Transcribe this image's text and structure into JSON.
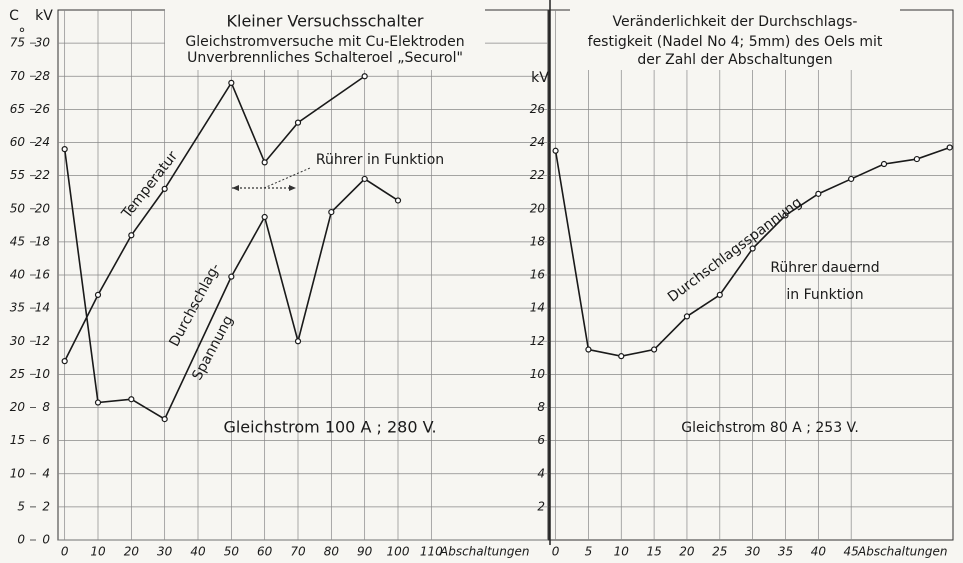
{
  "chart_data": [
    {
      "type": "line",
      "title": [
        "Kleiner Versuchsschalter",
        "Gleichstromversuche mit Cu-Elektroden",
        "Unverbrennliches Schalteroel „Securol\""
      ],
      "xlabel": "Abschaltungen",
      "ylabel": [
        "C",
        "°"
      ],
      "y2label": "kV",
      "xlim": [
        -2,
        145
      ],
      "xticks": [
        0,
        10,
        20,
        30,
        40,
        50,
        60,
        70,
        80,
        90,
        100,
        110
      ],
      "ylim": [
        0,
        80
      ],
      "yticks": [
        0,
        5,
        10,
        15,
        20,
        25,
        30,
        35,
        40,
        45,
        50,
        55,
        60,
        65,
        70,
        75
      ],
      "y2lim": [
        0,
        32
      ],
      "y2ticks": [
        0,
        2,
        4,
        6,
        8,
        10,
        12,
        14,
        16,
        18,
        20,
        22,
        24,
        26,
        28,
        30
      ],
      "grid": true,
      "series": [
        {
          "name": "Temperatur",
          "color": "#1a1a1a",
          "x": [
            0,
            10,
            20,
            30,
            50,
            60,
            70,
            90
          ],
          "values": [
            27,
            37,
            46,
            53,
            69,
            57,
            63,
            70
          ]
        },
        {
          "name": "Durchschlag-Spannung",
          "color": "#1a1a1a",
          "axis": "y2",
          "x": [
            0,
            10,
            20,
            30,
            50,
            60,
            70,
            80,
            90,
            100
          ],
          "values": [
            23.6,
            8.3,
            8.5,
            7.3,
            15.9,
            19.5,
            12.0,
            19.8,
            21.8,
            20.5
          ]
        }
      ],
      "annotations": [
        "Temperatur",
        "Durchschlag-",
        "Spannung",
        "Rührer in Funktion",
        "Gleichstrom 100 A ; 280 V."
      ]
    },
    {
      "type": "line",
      "title": [
        "Veränderlichkeit der Durchschlags-",
        "festigkeit (Nadel No 4; 5mm) des Oels mit",
        "der Zahl der Abschaltungen"
      ],
      "xlabel": "Abschaltungen",
      "ylabel": "kV",
      "xlim": [
        -1,
        60.5
      ],
      "xticks": [
        0,
        5,
        10,
        15,
        20,
        25,
        30,
        35,
        40,
        45
      ],
      "ylim": [
        0,
        32
      ],
      "yticks": [
        2,
        4,
        6,
        8,
        10,
        12,
        14,
        16,
        18,
        20,
        22,
        24,
        26
      ],
      "grid": true,
      "series": [
        {
          "name": "Durchschlagsspannung",
          "color": "#1a1a1a",
          "x": [
            0,
            5,
            10,
            15,
            20,
            25,
            30,
            35,
            40,
            45,
            50,
            55,
            60
          ],
          "values": [
            23.5,
            11.5,
            11.1,
            11.5,
            13.5,
            14.8,
            17.6,
            19.6,
            20.9,
            21.8,
            22.7,
            23.0,
            23.7
          ]
        }
      ],
      "annotations": [
        "Durchschlagsspannung",
        "Rührer dauernd",
        "in Funktion",
        "Gleichstrom 80 A ; 253 V."
      ]
    }
  ]
}
